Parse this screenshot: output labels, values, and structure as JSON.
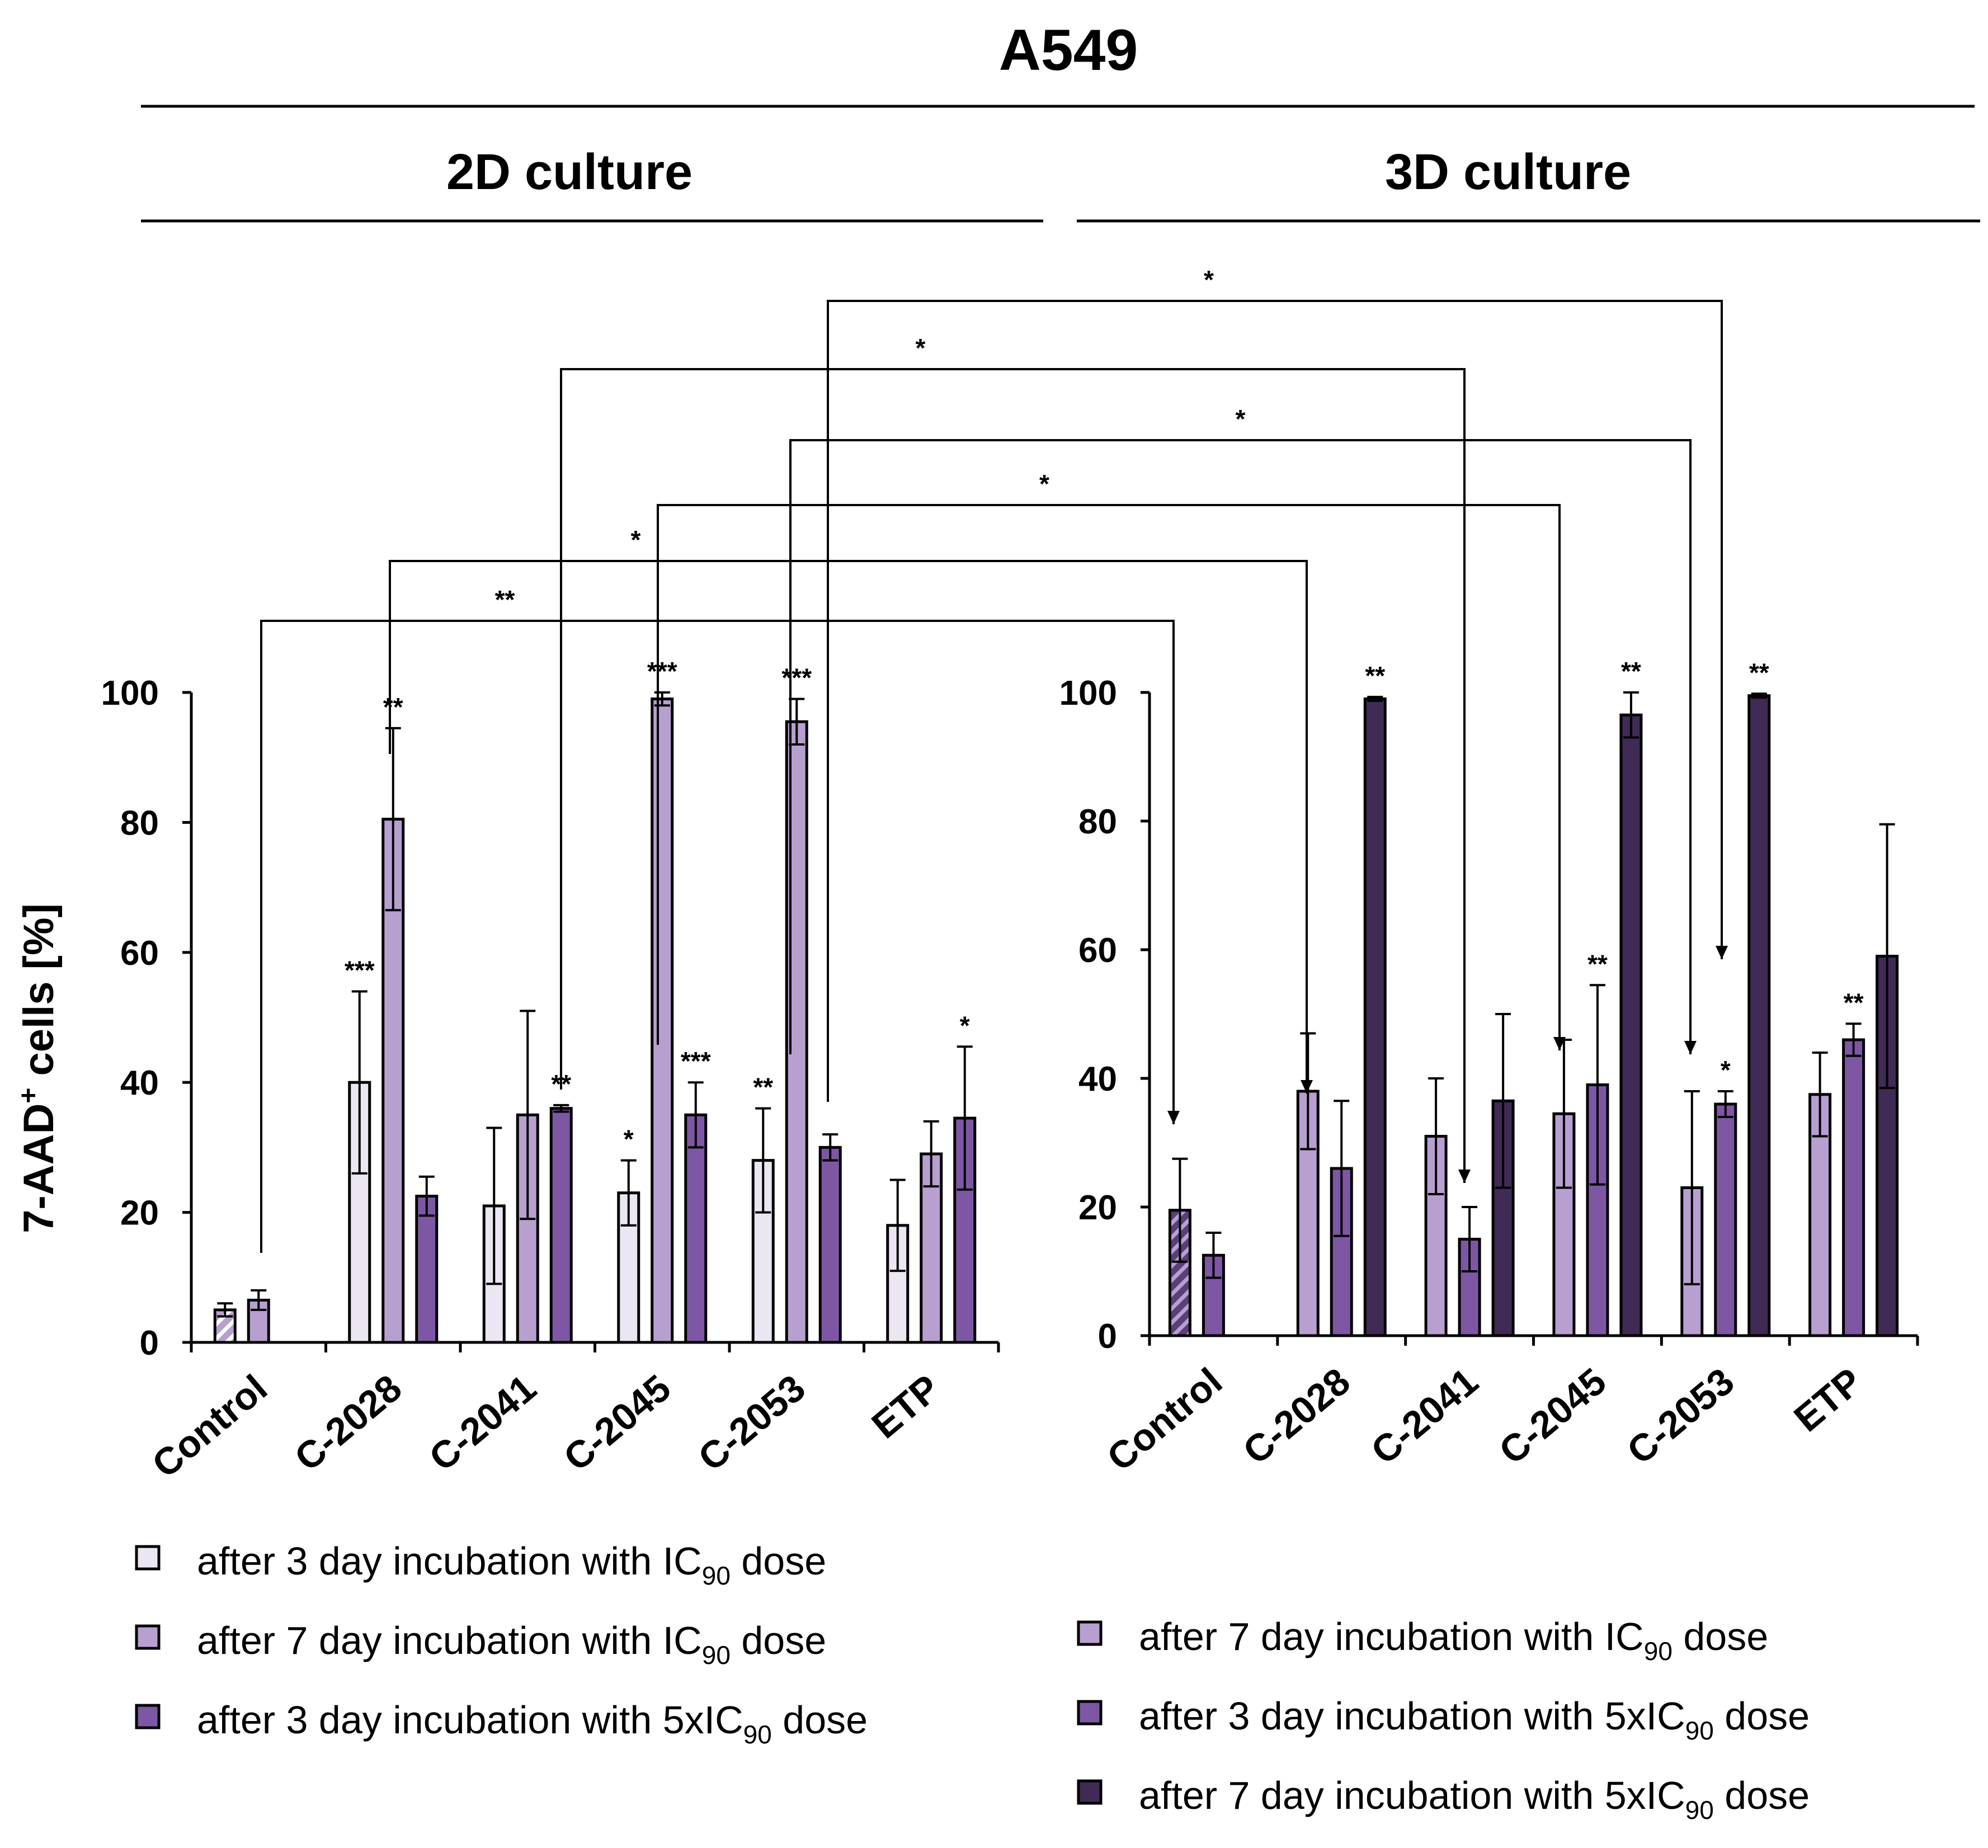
{
  "figure": {
    "title": "A549",
    "ylabel_main": "7-AAD",
    "ylabel_sup": "+",
    "ylabel_rest": " cells [%]"
  },
  "colors": {
    "d3_ic90": "#ece6f2",
    "d7_ic90": "#b7a0cf",
    "d3_5x": "#7d57a4",
    "d7_5x": "#3f2b55",
    "control_2d": "#b7a0cf",
    "control_3d": "#5b3f7a",
    "axis": "#000000"
  },
  "chart_data": [
    {
      "type": "bar",
      "title": "2D culture",
      "xlabel": "",
      "ylabel": "7-AAD+ cells [%]",
      "ylim": [
        0,
        100
      ],
      "yticks": [
        0,
        20,
        40,
        60,
        80,
        100
      ],
      "categories": [
        "Control",
        "C-2028",
        "C-2041",
        "C-2045",
        "C-2053",
        "ETP"
      ],
      "series": [
        {
          "name": "after 3 day incubation with IC90 dose",
          "key": "d3_ic90",
          "values": [
            5,
            40,
            21,
            23,
            28,
            18
          ],
          "errors": [
            1,
            14,
            12,
            5,
            8,
            7
          ],
          "sig": [
            "",
            "***",
            "",
            "*",
            "**",
            ""
          ]
        },
        {
          "name": "after 7 day incubation with IC90 dose",
          "key": "d7_ic90",
          "values": [
            6.5,
            80.5,
            35,
            99,
            95.5,
            29
          ],
          "errors": [
            1.5,
            14,
            16,
            1,
            3.5,
            5
          ],
          "sig": [
            "",
            "**",
            "",
            "***",
            "***",
            ""
          ]
        },
        {
          "name": "after 3 day incubation with 5xIC90 dose",
          "key": "d3_5x",
          "values": [
            null,
            22.5,
            36,
            35,
            30,
            34.5
          ],
          "errors": [
            null,
            3,
            0.5,
            5,
            2,
            11
          ],
          "sig": [
            "",
            "",
            "**",
            "***",
            "",
            "*"
          ]
        }
      ]
    },
    {
      "type": "bar",
      "title": "3D culture",
      "xlabel": "",
      "ylabel": "7-AAD+ cells [%]",
      "ylim": [
        0,
        100
      ],
      "yticks": [
        0,
        20,
        40,
        60,
        80,
        100
      ],
      "categories": [
        "Control",
        "C-2028",
        "C-2041",
        "C-2045",
        "C-2053",
        "ETP"
      ],
      "series": [
        {
          "name": "after 7 day incubation with IC90 dose",
          "key": "d7_ic90",
          "values": [
            19.5,
            38,
            31,
            34.5,
            23,
            37.5
          ],
          "errors": [
            8,
            9,
            9,
            11.5,
            15,
            6.5
          ],
          "sig": [
            "",
            "",
            "",
            "",
            "",
            ""
          ]
        },
        {
          "name": "after 3 day incubation with 5xIC90 dose",
          "key": "d3_5x",
          "values": [
            12.5,
            26,
            15,
            39,
            36,
            46
          ],
          "errors": [
            3.5,
            10.5,
            5,
            15.5,
            2,
            2.5
          ],
          "sig": [
            "",
            "",
            "",
            "**",
            "*",
            "**"
          ]
        },
        {
          "name": "after 7 day incubation with 5xIC90 dose",
          "key": "d7_5x",
          "values": [
            null,
            99,
            36.5,
            96.5,
            99.5,
            59
          ],
          "errors": [
            null,
            0.3,
            13.5,
            3.5,
            0.3,
            20.5
          ],
          "sig": [
            "",
            "**",
            "",
            "**",
            "**",
            ""
          ]
        }
      ]
    }
  ],
  "comparisons": [
    {
      "label": "*",
      "from": "2D C-2053 after 7 day incubation with IC90 dose",
      "to": "3D C-2053 after 7 day incubation with IC90 dose"
    },
    {
      "label": "*",
      "from": "2D C-2041 after 3 day incubation with 5xIC90 dose",
      "to": "3D C-2041 after 3 day incubation with 5xIC90 dose"
    },
    {
      "label": "*",
      "from": "2D C-2045 after 7 day incubation with IC90 dose",
      "to": "3D C-2045 after 7 day incubation with IC90 dose"
    },
    {
      "label": "*",
      "from": "2D C-2045 after 3 day incubation with 5xIC90 dose",
      "to": "3D C-2045 after 7 day incubation with IC90 dose"
    },
    {
      "label": "*",
      "from": "2D C-2028 after 7 day incubation with IC90 dose",
      "to": "3D C-2028 after 7 day incubation with IC90 dose"
    },
    {
      "label": "**",
      "from": "2D Control after 3 day incubation with IC90 dose",
      "to": "3D Control after 7 day incubation with IC90 dose"
    }
  ],
  "legends": [
    {
      "items": [
        {
          "key": "d3_ic90",
          "pre": "after 3 day incubation with IC",
          "sub": "90",
          "post": " dose"
        },
        {
          "key": "d7_ic90",
          "pre": "after 7 day incubation with IC",
          "sub": "90",
          "post": " dose"
        },
        {
          "key": "d3_5x",
          "pre": "after 3 day incubation with 5xIC",
          "sub": "90",
          "post": " dose"
        }
      ]
    },
    {
      "items": [
        {
          "key": "d7_ic90",
          "pre": "after 7 day incubation with IC",
          "sub": "90",
          "post": " dose"
        },
        {
          "key": "d3_5x",
          "pre": "after 3 day incubation with 5xIC",
          "sub": "90",
          "post": " dose"
        },
        {
          "key": "d7_5x",
          "pre": "after 7 day incubation with 5xIC",
          "sub": "90",
          "post": " dose"
        }
      ]
    }
  ]
}
